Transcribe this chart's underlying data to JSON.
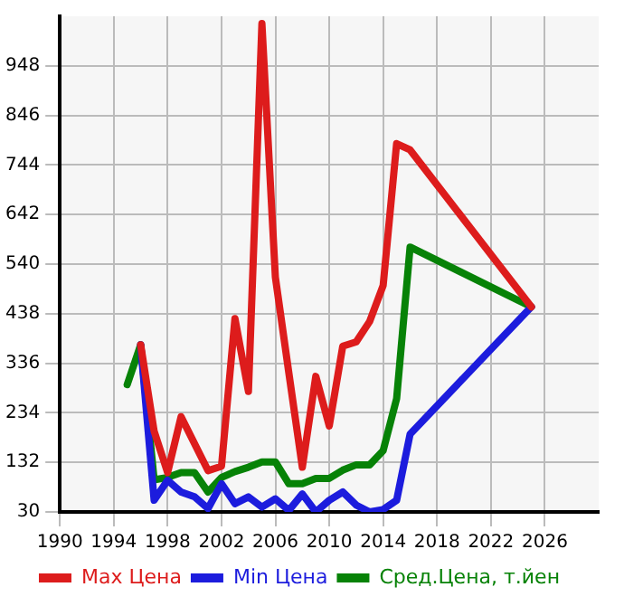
{
  "chart_data": {
    "type": "line",
    "xlim": [
      1990,
      2030
    ],
    "xticks": [
      1990,
      1994,
      1998,
      2002,
      2006,
      2010,
      2014,
      2018,
      2022,
      2026
    ],
    "ylim": [
      30,
      1050
    ],
    "yticks": [
      30,
      132,
      234,
      336,
      438,
      540,
      642,
      744,
      846,
      948
    ],
    "grid": true,
    "legend": "bottom",
    "marker": "none",
    "line_style": "solid",
    "series": [
      {
        "name": "Max Цена",
        "color": "#dd1c1c",
        "x": [
          1996,
          1997,
          1998,
          1999,
          2001,
          2002,
          2003,
          2004,
          2005,
          2006,
          2007,
          2008,
          2009,
          2010,
          2011,
          2012,
          2013,
          2014,
          2015,
          2016,
          2025
        ],
        "values": [
          374,
          196,
          111,
          226,
          115,
          124,
          428,
          278,
          1035,
          513,
          316,
          122,
          309,
          207,
          371,
          380,
          422,
          496,
          788,
          775,
          452
        ]
      },
      {
        "name": "Min Цена",
        "color": "#1c1cdd",
        "x": [
          1996,
          1997,
          1998,
          1999,
          2000,
          2001,
          2002,
          2003,
          2004,
          2005,
          2006,
          2007,
          2008,
          2009,
          2010,
          2011,
          2012,
          2013,
          2014,
          2015,
          2016,
          2025
        ],
        "values": [
          374,
          54,
          95,
          71,
          61,
          37,
          88,
          47,
          61,
          40,
          57,
          33,
          67,
          30,
          54,
          71,
          44,
          30,
          35,
          54,
          190,
          452
        ]
      },
      {
        "name": "Сред.Цена, т.йен",
        "color": "#078207",
        "x": [
          1995,
          1996,
          1997,
          1998,
          1999,
          2000,
          2001,
          2002,
          2003,
          2004,
          2005,
          2006,
          2007,
          2008,
          2009,
          2010,
          2011,
          2012,
          2013,
          2014,
          2015,
          2016,
          2025
        ],
        "values": [
          292,
          374,
          96,
          101,
          111,
          111,
          71,
          101,
          113,
          122,
          133,
          133,
          88,
          88,
          99,
          99,
          116,
          127,
          127,
          156,
          263,
          575,
          452
        ]
      }
    ]
  }
}
